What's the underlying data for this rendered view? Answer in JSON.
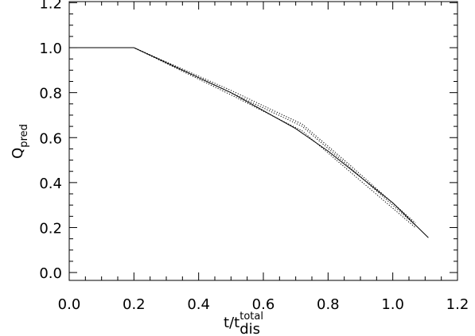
{
  "chart_data": {
    "type": "line",
    "x_label": {
      "text": "t/t",
      "sub": "dis",
      "sup": "total"
    },
    "y_label": {
      "text": "Q",
      "sub": "pred"
    },
    "xlim": [
      0,
      1.2
    ],
    "ylim": [
      -0.035,
      1.205
    ],
    "xticks": [
      {
        "value": 0,
        "label": "0.0"
      },
      {
        "value": 0.2,
        "label": "0.2"
      },
      {
        "value": 0.4,
        "label": "0.4"
      },
      {
        "value": 0.6,
        "label": "0.6"
      },
      {
        "value": 0.8,
        "label": "0.8"
      },
      {
        "value": 1,
        "label": "1.0"
      },
      {
        "value": 1.2,
        "label": "1.2"
      }
    ],
    "yticks": [
      {
        "value": 0,
        "label": "0.0"
      },
      {
        "value": 0.2,
        "label": "0.2"
      },
      {
        "value": 0.4,
        "label": "0.4"
      },
      {
        "value": 0.6,
        "label": "0.6"
      },
      {
        "value": 0.8,
        "label": "0.8"
      },
      {
        "value": 1,
        "label": "1.0"
      },
      {
        "value": 1.2,
        "label": "1.2"
      }
    ],
    "minor_per_major": 4,
    "series": [
      {
        "color": "#000000",
        "linestyle": "solid",
        "x": [
          0,
          0.2,
          0.5,
          0.7,
          0.8,
          1.0,
          1.11
        ],
        "values": [
          1.0,
          1.0,
          0.8,
          0.64,
          0.54,
          0.31,
          0.155
        ]
      },
      {
        "color": "#000000",
        "linestyle": "dotted",
        "x": [
          0,
          0.2,
          0.5,
          0.72,
          0.85,
          1.07
        ],
        "values": [
          1.0,
          1.0,
          0.79,
          0.63,
          0.47,
          0.2
        ]
      },
      {
        "color": "#000000",
        "linestyle": "dotted",
        "x": [
          0,
          0.2,
          0.5,
          0.72,
          0.85,
          1.07
        ],
        "values": [
          1.0,
          1.0,
          0.8,
          0.65,
          0.49,
          0.21
        ]
      },
      {
        "color": "#000000",
        "linestyle": "dotted",
        "x": [
          0,
          0.2,
          0.5,
          0.72,
          0.85,
          1.07
        ],
        "values": [
          1.0,
          1.0,
          0.81,
          0.66,
          0.5,
          0.22
        ]
      }
    ]
  }
}
